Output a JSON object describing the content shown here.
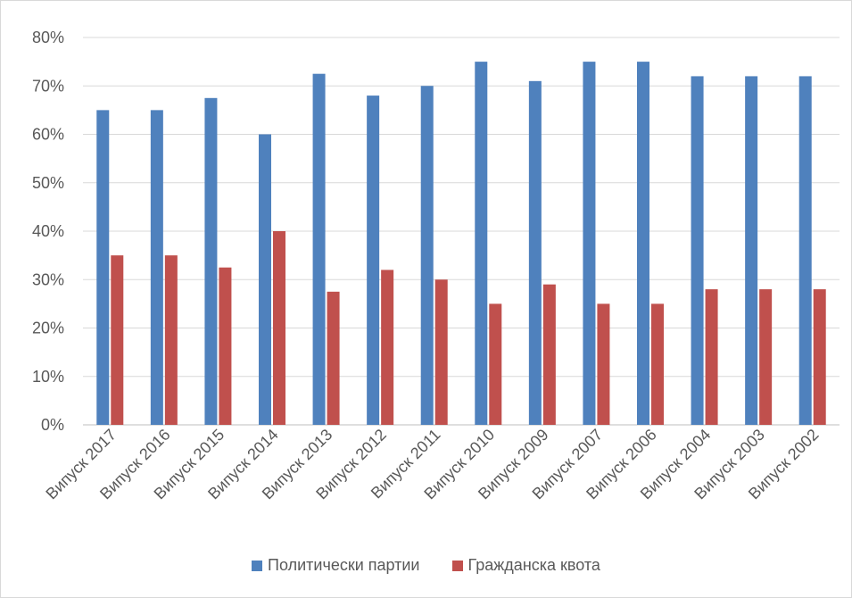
{
  "chart_data": {
    "type": "bar",
    "categories": [
      "Випуск 2017",
      "Випуск 2016",
      "Випуск 2015",
      "Випуск 2014",
      "Випуск 2013",
      "Випуск 2012",
      "Випуск 2011",
      "Випуск 2010",
      "Випуск 2009",
      "Випуск 2007",
      "Випуск 2006",
      "Випуск 2004",
      "Випуск 2003",
      "Випуск 2002"
    ],
    "series": [
      {
        "name": "Политически партии",
        "color": "#4f81bd",
        "values": [
          65,
          65,
          67.5,
          60,
          72.5,
          68,
          70,
          75,
          71,
          75,
          75,
          72,
          72,
          72
        ]
      },
      {
        "name": "Гражданска квота",
        "color": "#c0504d",
        "values": [
          35,
          35,
          32.5,
          40,
          27.5,
          32,
          30,
          25,
          29,
          25,
          25,
          28,
          28,
          28
        ]
      }
    ],
    "yticks": [
      "0%",
      "10%",
      "20%",
      "30%",
      "40%",
      "50%",
      "60%",
      "70%",
      "80%"
    ],
    "ylim": [
      0,
      80
    ],
    "grid": true,
    "legend_position": "bottom"
  }
}
